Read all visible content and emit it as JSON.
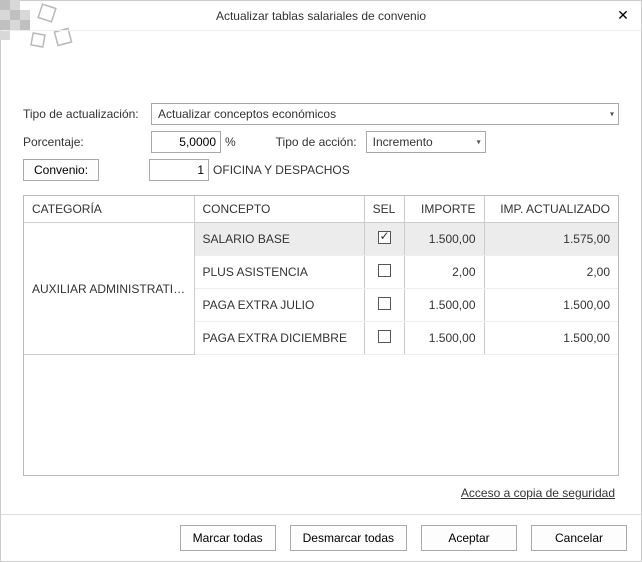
{
  "window": {
    "title": "Actualizar tablas salariales de convenio"
  },
  "form": {
    "tipo_label": "Tipo de actualización:",
    "tipo_value": "Actualizar conceptos económicos",
    "porcentaje_label": "Porcentaje:",
    "porcentaje_value": "5,0000",
    "porcentaje_unit": "%",
    "accion_label": "Tipo de acción:",
    "accion_value": "Incremento",
    "convenio_btn": "Convenio:",
    "convenio_num": "1",
    "convenio_name": "OFICINA Y DESPACHOS"
  },
  "table": {
    "headers": {
      "categoria": "CATEGORÍA",
      "concepto": "CONCEPTO",
      "sel": "SEL",
      "importe": "IMPORTE",
      "imp_act": "IMP. ACTUALIZADO"
    },
    "categoria": "AUXILIAR ADMINISTRATI…",
    "rows": [
      {
        "concepto": "SALARIO BASE",
        "sel": true,
        "importe": "1.500,00",
        "imp_act": "1.575,00",
        "highlight": true
      },
      {
        "concepto": "PLUS ASISTENCIA",
        "sel": false,
        "importe": "2,00",
        "imp_act": "2,00",
        "highlight": false
      },
      {
        "concepto": "PAGA EXTRA JULIO",
        "sel": false,
        "importe": "1.500,00",
        "imp_act": "1.500,00",
        "highlight": false
      },
      {
        "concepto": "PAGA EXTRA DICIEMBRE",
        "sel": false,
        "importe": "1.500,00",
        "imp_act": "1.500,00",
        "highlight": false
      }
    ]
  },
  "footer": {
    "backup_link": "Acceso a copia de seguridad",
    "marcar": "Marcar todas",
    "desmarcar": "Desmarcar todas",
    "aceptar": "Aceptar",
    "cancelar": "Cancelar"
  }
}
